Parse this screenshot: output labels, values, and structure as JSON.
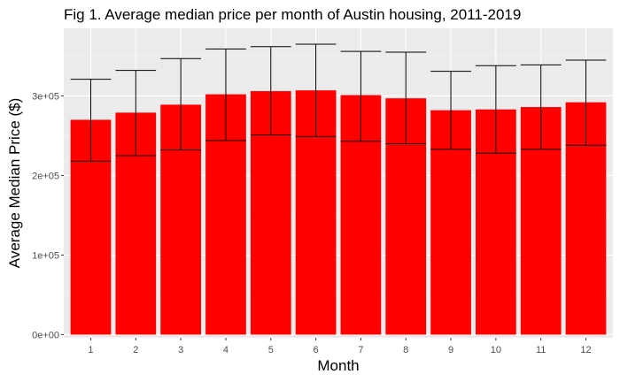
{
  "chart_data": {
    "type": "bar",
    "title": "Fig 1. Average median price per month of Austin housing, 2011-2019",
    "xlabel": "Month",
    "ylabel": "Average Median Price ($)",
    "categories": [
      "1",
      "2",
      "3",
      "4",
      "5",
      "6",
      "7",
      "8",
      "9",
      "10",
      "11",
      "12"
    ],
    "values": [
      270000,
      279000,
      289000,
      302000,
      306000,
      307000,
      301000,
      297000,
      282000,
      283000,
      286000,
      292000
    ],
    "error_low": [
      218000,
      225000,
      232000,
      244000,
      251000,
      249000,
      243000,
      240000,
      233000,
      228000,
      233000,
      238000
    ],
    "error_high": [
      321000,
      332000,
      347000,
      359000,
      362000,
      365000,
      356000,
      355000,
      331000,
      338000,
      339000,
      345000
    ],
    "ylim": [
      -4000,
      385000
    ],
    "yticks": [
      0,
      100000,
      200000,
      300000
    ],
    "ytick_labels": [
      "0e+00",
      "1e+05",
      "2e+05",
      "3e+05"
    ],
    "bar_color": "#ff0000",
    "panel_background": "#ebebeb",
    "grid": true,
    "legend": "none"
  }
}
